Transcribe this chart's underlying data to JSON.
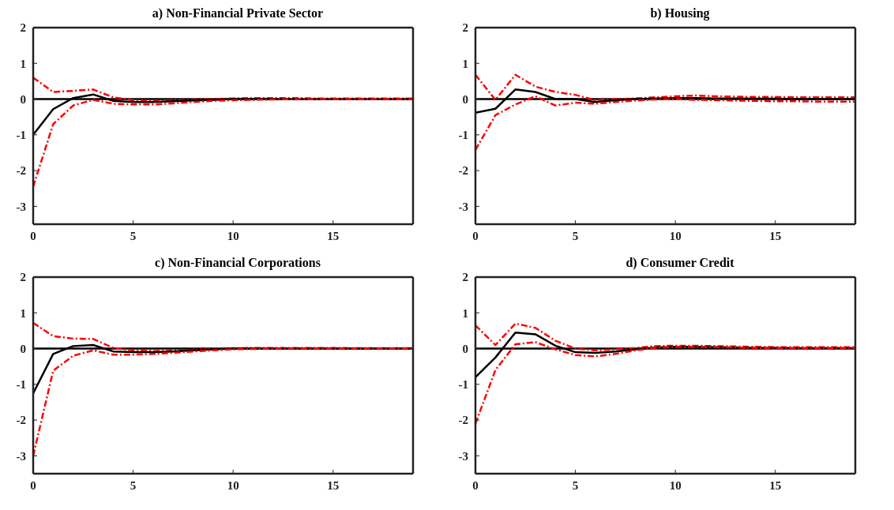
{
  "chart_data": [
    {
      "type": "line",
      "title": "a) Non-Financial Private Sector",
      "x": [
        0,
        1,
        2,
        3,
        4,
        5,
        6,
        7,
        8,
        9,
        10,
        11,
        12,
        13,
        14,
        15,
        16,
        17,
        18,
        19
      ],
      "xlim": [
        0,
        19
      ],
      "xticks": [
        0,
        5,
        10,
        15
      ],
      "ylim": [
        -3.5,
        2
      ],
      "yticks": [
        -3,
        -2,
        -1,
        0,
        1,
        2
      ],
      "grid": false,
      "legend": false,
      "ref_lines": [
        {
          "axis": "y",
          "value": 0,
          "color": "#000000",
          "line_style": "solid"
        }
      ],
      "series": [
        {
          "color": "#ff0000",
          "line_style": "dashed",
          "values": [
            0.6,
            0.2,
            0.23,
            0.27,
            0.05,
            -0.03,
            -0.05,
            -0.03,
            -0.02,
            0,
            0.02,
            0.03,
            0.03,
            0.03,
            0.02,
            0.02,
            0.02,
            0.02,
            0.02,
            0.02
          ]
        },
        {
          "color": "#000000",
          "line_style": "solid",
          "values": [
            -1.0,
            -0.28,
            0.03,
            0.13,
            -0.05,
            -0.08,
            -0.08,
            -0.06,
            -0.04,
            -0.02,
            0,
            0,
            0,
            0,
            0,
            0,
            0,
            0,
            0,
            0
          ]
        },
        {
          "color": "#ff0000",
          "line_style": "dashed",
          "values": [
            -2.45,
            -0.7,
            -0.18,
            -0.02,
            -0.13,
            -0.15,
            -0.15,
            -0.12,
            -0.08,
            -0.05,
            -0.03,
            -0.02,
            -0.01,
            0,
            0,
            0,
            0,
            0,
            0,
            0
          ]
        }
      ]
    },
    {
      "type": "line",
      "title": "b) Housing",
      "x": [
        0,
        1,
        2,
        3,
        4,
        5,
        6,
        7,
        8,
        9,
        10,
        11,
        12,
        13,
        14,
        15,
        16,
        17,
        18,
        19
      ],
      "xlim": [
        0,
        19
      ],
      "xticks": [
        0,
        5,
        10,
        15
      ],
      "ylim": [
        -3.5,
        2
      ],
      "yticks": [
        -3,
        -2,
        -1,
        0,
        1,
        2
      ],
      "grid": false,
      "legend": false,
      "ref_lines": [
        {
          "axis": "y",
          "value": 0,
          "color": "#000000",
          "line_style": "solid"
        }
      ],
      "series": [
        {
          "color": "#ff0000",
          "line_style": "dashed",
          "values": [
            0.68,
            -0.02,
            0.68,
            0.35,
            0.2,
            0.12,
            -0.03,
            0,
            0.02,
            0.05,
            0.08,
            0.1,
            0.08,
            0.07,
            0.06,
            0.06,
            0.05,
            0.05,
            0.05,
            0.05
          ]
        },
        {
          "color": "#000000",
          "line_style": "solid",
          "values": [
            -0.38,
            -0.27,
            0.27,
            0.2,
            0,
            0,
            -0.08,
            -0.03,
            0,
            0.02,
            0.03,
            0.03,
            0.02,
            0.02,
            0.01,
            0.01,
            0,
            0,
            0,
            0
          ]
        },
        {
          "color": "#ff0000",
          "line_style": "dashed",
          "values": [
            -1.42,
            -0.45,
            -0.15,
            0.08,
            -0.18,
            -0.1,
            -0.13,
            -0.08,
            -0.04,
            -0.01,
            0,
            -0.02,
            -0.03,
            -0.04,
            -0.05,
            -0.06,
            -0.06,
            -0.07,
            -0.07,
            -0.07
          ]
        }
      ]
    },
    {
      "type": "line",
      "title": "c) Non-Financial Corporations",
      "x": [
        0,
        1,
        2,
        3,
        4,
        5,
        6,
        7,
        8,
        9,
        10,
        11,
        12,
        13,
        14,
        15,
        16,
        17,
        18,
        19
      ],
      "xlim": [
        0,
        19
      ],
      "xticks": [
        0,
        5,
        10,
        15
      ],
      "ylim": [
        -3.5,
        2
      ],
      "yticks": [
        -3,
        -2,
        -1,
        0,
        1,
        2
      ],
      "grid": false,
      "legend": false,
      "ref_lines": [
        {
          "axis": "y",
          "value": 0,
          "color": "#000000",
          "line_style": "solid"
        }
      ],
      "series": [
        {
          "color": "#ff0000",
          "line_style": "dashed",
          "values": [
            0.72,
            0.35,
            0.28,
            0.27,
            0.02,
            -0.05,
            -0.07,
            -0.06,
            -0.03,
            -0.01,
            0.01,
            0.02,
            0.02,
            0.02,
            0.02,
            0.02,
            0.01,
            0.01,
            0.01,
            0.01
          ]
        },
        {
          "color": "#000000",
          "line_style": "solid",
          "values": [
            -1.25,
            -0.15,
            0.07,
            0.1,
            -0.08,
            -0.1,
            -0.1,
            -0.08,
            -0.05,
            -0.02,
            0,
            0,
            0,
            0,
            0,
            0,
            0,
            0,
            0,
            0
          ]
        },
        {
          "color": "#ff0000",
          "line_style": "dashed",
          "values": [
            -3.0,
            -0.62,
            -0.2,
            -0.05,
            -0.17,
            -0.17,
            -0.15,
            -0.12,
            -0.08,
            -0.05,
            -0.02,
            -0.01,
            0,
            0,
            0,
            0,
            0,
            0,
            0,
            0
          ]
        }
      ]
    },
    {
      "type": "line",
      "title": "d) Consumer Credit",
      "x": [
        0,
        1,
        2,
        3,
        4,
        5,
        6,
        7,
        8,
        9,
        10,
        11,
        12,
        13,
        14,
        15,
        16,
        17,
        18,
        19
      ],
      "xlim": [
        0,
        19
      ],
      "xticks": [
        0,
        5,
        10,
        15
      ],
      "ylim": [
        -3.5,
        2
      ],
      "yticks": [
        -3,
        -2,
        -1,
        0,
        1,
        2
      ],
      "grid": false,
      "legend": false,
      "ref_lines": [
        {
          "axis": "y",
          "value": 0,
          "color": "#000000",
          "line_style": "solid"
        }
      ],
      "series": [
        {
          "color": "#ff0000",
          "line_style": "dashed",
          "values": [
            0.65,
            0.1,
            0.7,
            0.58,
            0.22,
            0,
            -0.05,
            -0.02,
            0.02,
            0.07,
            0.08,
            0.08,
            0.07,
            0.06,
            0.05,
            0.04,
            0.04,
            0.04,
            0.04,
            0.04
          ]
        },
        {
          "color": "#000000",
          "line_style": "solid",
          "values": [
            -0.8,
            -0.25,
            0.45,
            0.4,
            0.08,
            -0.1,
            -0.12,
            -0.08,
            -0.02,
            0.03,
            0.05,
            0.05,
            0.04,
            0.03,
            0.02,
            0.02,
            0.01,
            0.01,
            0.01,
            0.01
          ]
        },
        {
          "color": "#ff0000",
          "line_style": "dashed",
          "values": [
            -2.1,
            -0.6,
            0.12,
            0.18,
            -0.02,
            -0.18,
            -0.22,
            -0.15,
            -0.05,
            0.02,
            0.05,
            0.05,
            0.04,
            0.03,
            0.02,
            0.01,
            0.01,
            0.01,
            0.01,
            0.01
          ]
        }
      ]
    }
  ]
}
